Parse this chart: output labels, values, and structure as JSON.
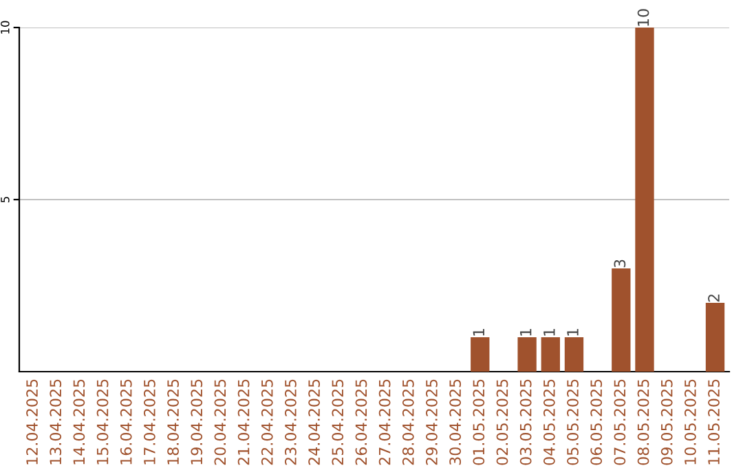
{
  "chart_data": {
    "type": "bar",
    "categories": [
      "12.04.2025",
      "13.04.2025",
      "14.04.2025",
      "15.04.2025",
      "16.04.2025",
      "17.04.2025",
      "18.04.2025",
      "19.04.2025",
      "20.04.2025",
      "21.04.2025",
      "22.04.2025",
      "23.04.2025",
      "24.04.2025",
      "25.04.2025",
      "26.04.2025",
      "27.04.2025",
      "28.04.2025",
      "29.04.2025",
      "30.04.2025",
      "01.05.2025",
      "02.05.2025",
      "03.05.2025",
      "04.05.2025",
      "05.05.2025",
      "06.05.2025",
      "07.05.2025",
      "08.05.2025",
      "09.05.2025",
      "10.05.2025",
      "11.05.2025"
    ],
    "values": [
      0,
      0,
      0,
      0,
      0,
      0,
      0,
      0,
      0,
      0,
      0,
      0,
      0,
      0,
      0,
      0,
      0,
      0,
      0,
      1,
      0,
      1,
      1,
      1,
      0,
      3,
      10,
      0,
      0,
      2
    ],
    "value_labels": [
      null,
      null,
      null,
      null,
      null,
      null,
      null,
      null,
      null,
      null,
      null,
      null,
      null,
      null,
      null,
      null,
      null,
      null,
      null,
      "1",
      null,
      "1",
      "1",
      "1",
      null,
      "3",
      "10",
      null,
      null,
      "2"
    ],
    "color": "#a0522d",
    "ylim": [
      0,
      10
    ],
    "yticks": [
      5,
      10
    ],
    "grid": "y"
  }
}
